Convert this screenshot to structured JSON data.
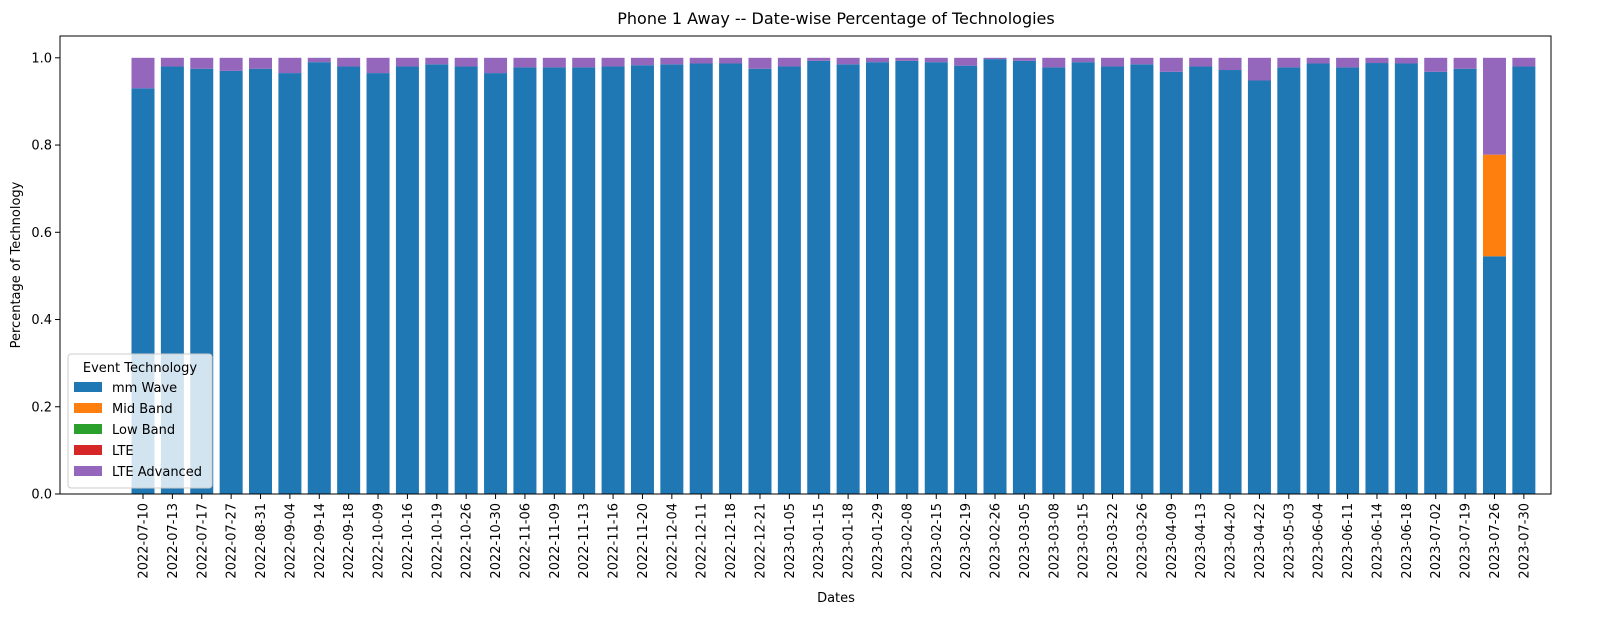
{
  "chart_data": {
    "type": "bar",
    "stacked": true,
    "title": "Phone 1 Away -- Date-wise Percentage of Technologies",
    "xlabel": "Dates",
    "ylabel": "Percentage of Technology",
    "ylim": [
      0,
      1.05
    ],
    "yticks": [
      "0.0",
      "0.2",
      "0.4",
      "0.6",
      "0.8",
      "1.0"
    ],
    "grid": false,
    "legend": {
      "title": "Event Technology",
      "placement": "lower-left"
    },
    "categories": [
      "2022-07-10",
      "2022-07-13",
      "2022-07-17",
      "2022-07-27",
      "2022-08-31",
      "2022-09-04",
      "2022-09-14",
      "2022-09-18",
      "2022-10-09",
      "2022-10-16",
      "2022-10-19",
      "2022-10-26",
      "2022-10-30",
      "2022-11-06",
      "2022-11-09",
      "2022-11-13",
      "2022-11-16",
      "2022-11-20",
      "2022-12-04",
      "2022-12-11",
      "2022-12-18",
      "2022-12-21",
      "2023-01-05",
      "2023-01-15",
      "2023-01-18",
      "2023-01-29",
      "2023-02-08",
      "2023-02-15",
      "2023-02-19",
      "2023-02-26",
      "2023-03-05",
      "2023-03-08",
      "2023-03-15",
      "2023-03-22",
      "2023-03-26",
      "2023-04-09",
      "2023-04-13",
      "2023-04-20",
      "2023-04-22",
      "2023-05-03",
      "2023-06-04",
      "2023-06-11",
      "2023-06-14",
      "2023-06-18",
      "2023-07-02",
      "2023-07-19",
      "2023-07-26",
      "2023-07-30"
    ],
    "series": [
      {
        "name": "mm Wave",
        "color": "#1f77b4",
        "values": [
          0.93,
          0.98,
          0.975,
          0.97,
          0.975,
          0.965,
          0.99,
          0.98,
          0.965,
          0.98,
          0.985,
          0.98,
          0.965,
          0.978,
          0.978,
          0.978,
          0.98,
          0.983,
          0.985,
          0.987,
          0.987,
          0.975,
          0.98,
          0.993,
          0.985,
          0.99,
          0.993,
          0.99,
          0.982,
          0.997,
          0.993,
          0.978,
          0.99,
          0.98,
          0.985,
          0.968,
          0.98,
          0.972,
          0.948,
          0.978,
          0.987,
          0.978,
          0.988,
          0.987,
          0.968,
          0.975,
          0.545,
          0.98
        ]
      },
      {
        "name": "Mid Band",
        "color": "#ff7f0e",
        "values": [
          0,
          0,
          0,
          0,
          0,
          0,
          0,
          0,
          0,
          0,
          0,
          0,
          0,
          0,
          0,
          0,
          0,
          0,
          0,
          0,
          0,
          0,
          0,
          0,
          0,
          0,
          0,
          0,
          0,
          0,
          0,
          0,
          0,
          0,
          0,
          0,
          0,
          0,
          0,
          0,
          0,
          0,
          0,
          0,
          0,
          0,
          0.233,
          0
        ]
      },
      {
        "name": "Low Band",
        "color": "#2ca02c",
        "values": [
          0,
          0,
          0,
          0,
          0,
          0,
          0,
          0,
          0,
          0,
          0,
          0,
          0,
          0,
          0,
          0,
          0,
          0,
          0,
          0,
          0,
          0,
          0,
          0,
          0,
          0,
          0,
          0,
          0,
          0,
          0,
          0,
          0,
          0,
          0,
          0,
          0,
          0,
          0,
          0,
          0,
          0,
          0,
          0,
          0,
          0,
          0,
          0
        ]
      },
      {
        "name": "LTE",
        "color": "#d62728",
        "values": [
          0,
          0,
          0,
          0,
          0,
          0,
          0,
          0,
          0,
          0,
          0,
          0,
          0,
          0,
          0,
          0,
          0,
          0,
          0,
          0,
          0,
          0,
          0,
          0,
          0,
          0,
          0,
          0,
          0,
          0,
          0,
          0,
          0,
          0,
          0,
          0,
          0,
          0,
          0,
          0,
          0,
          0,
          0,
          0,
          0,
          0,
          0,
          0
        ]
      },
      {
        "name": "LTE Advanced",
        "color": "#9467bd",
        "values": [
          0.07,
          0.02,
          0.025,
          0.03,
          0.025,
          0.035,
          0.01,
          0.02,
          0.035,
          0.02,
          0.015,
          0.02,
          0.035,
          0.022,
          0.022,
          0.022,
          0.02,
          0.017,
          0.015,
          0.013,
          0.013,
          0.025,
          0.02,
          0.007,
          0.015,
          0.01,
          0.007,
          0.01,
          0.018,
          0.003,
          0.007,
          0.022,
          0.01,
          0.02,
          0.015,
          0.032,
          0.02,
          0.028,
          0.052,
          0.022,
          0.013,
          0.022,
          0.012,
          0.013,
          0.032,
          0.025,
          0.222,
          0.02
        ]
      }
    ]
  }
}
